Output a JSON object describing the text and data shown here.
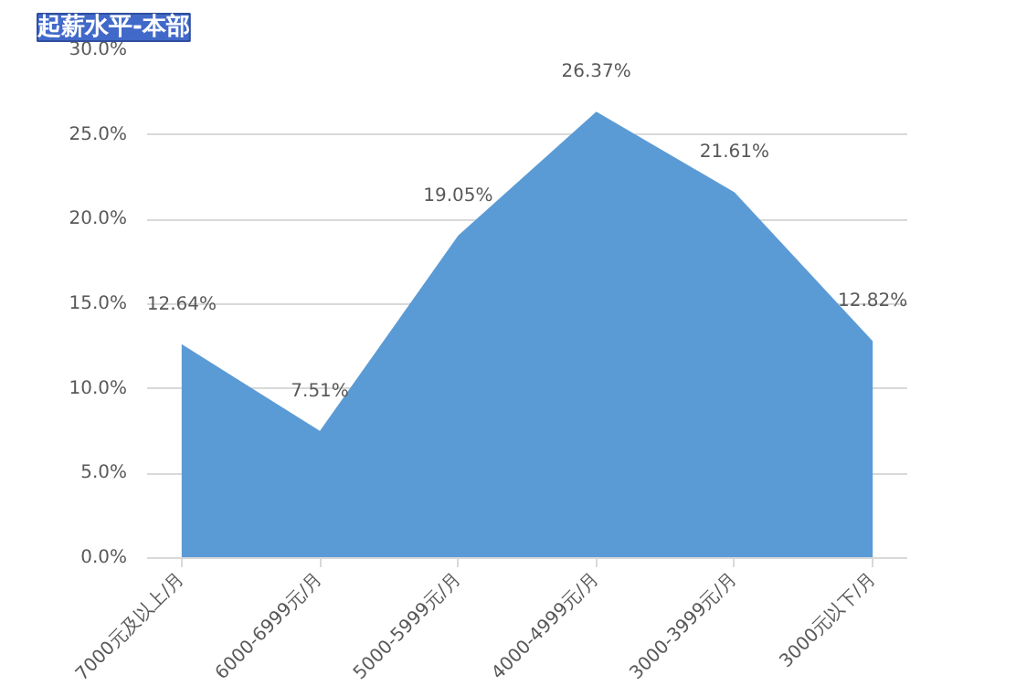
{
  "chart_data": {
    "type": "area",
    "title": "起薪水平-本部",
    "categories": [
      "7000元及以上/月",
      "6000-6999元/月",
      "5000-5999元/月",
      "4000-4999元/月",
      "3000-3999元/月",
      "3000元以下/月"
    ],
    "series": [
      {
        "color": "#5b9bd5",
        "values": [
          12.64,
          7.51,
          19.05,
          26.37,
          21.61,
          12.82
        ],
        "value_labels": [
          "12.64%",
          "7.51%",
          "19.05%",
          "26.37%",
          "21.61%",
          "12.82%"
        ]
      }
    ],
    "ylim": [
      0,
      30
    ],
    "yticks": [
      {
        "value": 0,
        "label": "0.0%"
      },
      {
        "value": 5,
        "label": "5.0%"
      },
      {
        "value": 10,
        "label": "10.0%"
      },
      {
        "value": 15,
        "label": "15.0%"
      },
      {
        "value": 20,
        "label": "20.0%"
      },
      {
        "value": 25,
        "label": "25.0%"
      },
      {
        "value": 30,
        "label": "30.0%"
      }
    ],
    "grid": "y"
  }
}
